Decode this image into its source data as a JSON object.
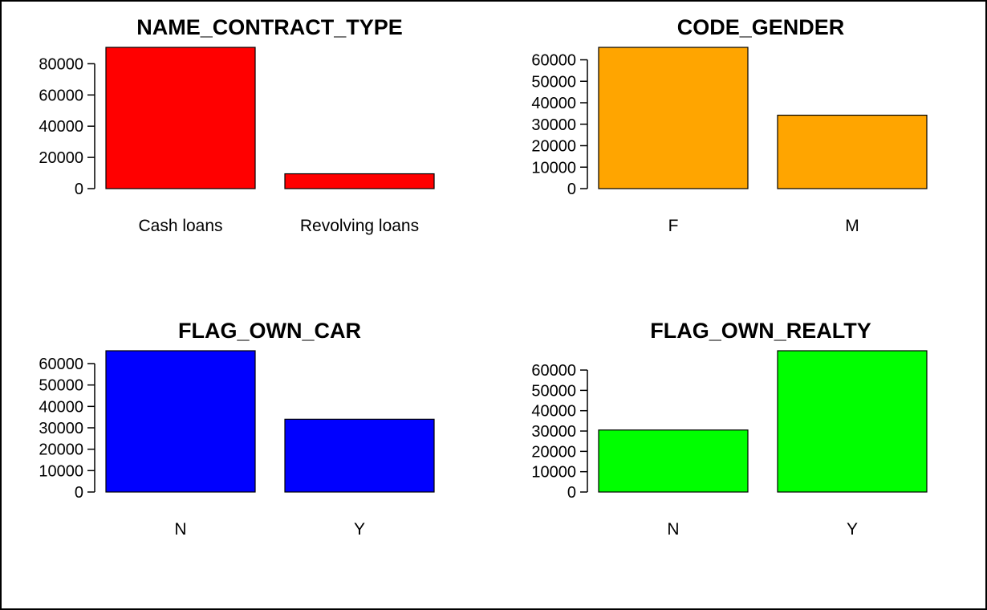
{
  "chart_data": [
    {
      "type": "bar",
      "title": "NAME_CONTRACT_TYPE",
      "categories": [
        "Cash loans",
        "Revolving loans"
      ],
      "values": [
        90500,
        9500
      ],
      "ylim": [
        0,
        90500
      ],
      "yticks": [
        0,
        20000,
        40000,
        60000,
        80000
      ],
      "ytick_labels": [
        "0",
        "20000",
        "40000",
        "60000",
        "80000"
      ],
      "color": "#ff0000",
      "xlabel": "",
      "ylabel": "",
      "grid": false
    },
    {
      "type": "bar",
      "title": "CODE_GENDER",
      "categories": [
        "F",
        "M"
      ],
      "values": [
        65800,
        34200
      ],
      "ylim": [
        0,
        65800
      ],
      "yticks": [
        0,
        10000,
        20000,
        30000,
        40000,
        50000,
        60000
      ],
      "ytick_labels": [
        "0",
        "10000",
        "20000",
        "30000",
        "40000",
        "50000",
        "60000"
      ],
      "color": "#ffa500",
      "xlabel": "",
      "ylabel": "",
      "grid": false
    },
    {
      "type": "bar",
      "title": "FLAG_OWN_CAR",
      "categories": [
        "N",
        "Y"
      ],
      "values": [
        66000,
        34000
      ],
      "ylim": [
        0,
        66000
      ],
      "yticks": [
        0,
        10000,
        20000,
        30000,
        40000,
        50000,
        60000
      ],
      "ytick_labels": [
        "0",
        "10000",
        "20000",
        "30000",
        "40000",
        "50000",
        "60000"
      ],
      "color": "#0000ff",
      "xlabel": "",
      "ylabel": "",
      "grid": false
    },
    {
      "type": "bar",
      "title": "FLAG_OWN_REALTY",
      "categories": [
        "N",
        "Y"
      ],
      "values": [
        30500,
        69500
      ],
      "ylim": [
        0,
        69500
      ],
      "yticks": [
        0,
        10000,
        20000,
        30000,
        40000,
        50000,
        60000
      ],
      "ytick_labels": [
        "0",
        "10000",
        "20000",
        "30000",
        "40000",
        "50000",
        "60000"
      ],
      "color": "#00ff00",
      "xlabel": "",
      "ylabel": "",
      "grid": false
    }
  ]
}
